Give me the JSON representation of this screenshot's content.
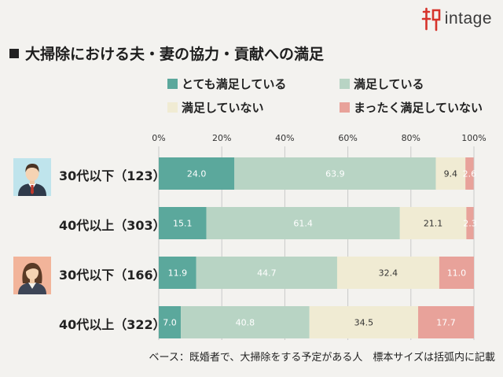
{
  "logo": {
    "text": "intage"
  },
  "title": "大掃除における夫・妻の協力・貢献への満足",
  "legend": [
    {
      "label": "とても満足している",
      "color": "#5ba89c"
    },
    {
      "label": "満足している",
      "color": "#b8d4c4"
    },
    {
      "label": "満足していない",
      "color": "#f0ebd3"
    },
    {
      "label": "まったく満足していない",
      "color": "#e8a29a"
    }
  ],
  "avatars": [
    {
      "name": "male-avatar",
      "bg": "#bfe4ec"
    },
    {
      "name": "female-avatar",
      "bg": "#f2b49a"
    }
  ],
  "footnote": "ベース：既婚者で、大掃除をする予定がある人　標本サイズは括弧内に記載",
  "chart_data": {
    "type": "bar",
    "orientation": "horizontal-stacked-100",
    "categories": [
      "30代以下（123）",
      "40代以上（303）",
      "30代以下（166）",
      "40代以上（322）"
    ],
    "xlim": [
      0,
      100
    ],
    "ticks": [
      "0%",
      "20%",
      "40%",
      "60%",
      "80%",
      "100%"
    ],
    "series": [
      {
        "name": "とても満足している",
        "values": [
          24.0,
          15.1,
          11.9,
          7.0
        ],
        "labels": [
          "24.0",
          "15.1",
          "11.9",
          "7.0"
        ],
        "color": "#5ba89c",
        "label_color": "#ffffff"
      },
      {
        "name": "満足している",
        "values": [
          63.9,
          61.4,
          44.7,
          40.8
        ],
        "labels": [
          "63.9",
          "61.4",
          "44.7",
          "40.8"
        ],
        "color": "#b8d4c4",
        "label_color": "#ffffff"
      },
      {
        "name": "満足していない",
        "values": [
          9.4,
          21.1,
          32.4,
          34.5
        ],
        "labels": [
          "9.4",
          "21.1",
          "32.4",
          "34.5"
        ],
        "color": "#f0ebd3",
        "label_color": "#333333"
      },
      {
        "name": "まったく満足していない",
        "values": [
          2.6,
          2.3,
          11.0,
          17.7
        ],
        "labels": [
          "2.6",
          "2.3",
          "11.0",
          "17.7"
        ],
        "color": "#e8a29a",
        "label_color": "#ffffff"
      }
    ]
  }
}
